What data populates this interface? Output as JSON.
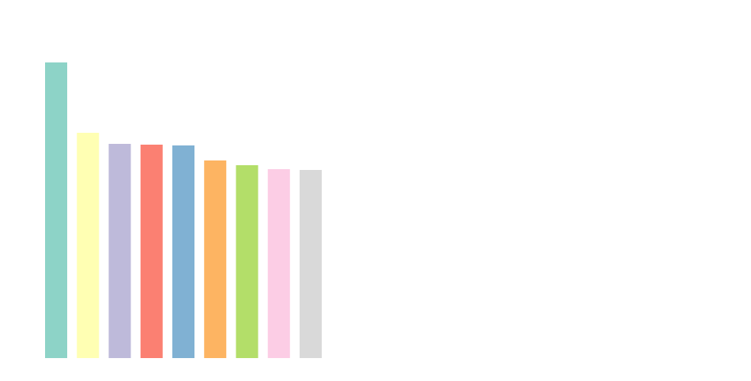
{
  "chart_data": {
    "type": "bar",
    "categories": [
      null,
      null,
      null,
      null,
      null,
      null,
      null,
      null,
      null
    ],
    "values": [
      374,
      285,
      271,
      270,
      269,
      250,
      244,
      239,
      238
    ],
    "colors": [
      "#8dd3c7",
      "#ffffb3",
      "#bebada",
      "#fb8072",
      "#80b1d3",
      "#fdb462",
      "#b3de69",
      "#fccde5",
      "#d9d9d9"
    ],
    "ylim": [
      0,
      374
    ],
    "tick_labels": false,
    "grid": false
  }
}
